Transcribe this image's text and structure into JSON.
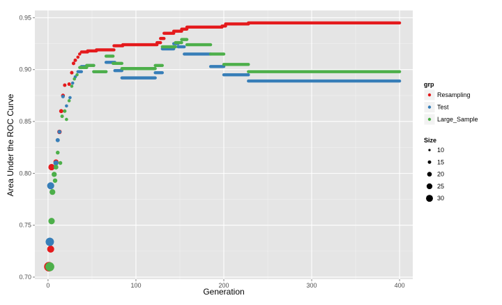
{
  "chart_data": {
    "type": "scatter",
    "xlabel": "Generation",
    "ylabel": "Area Under the ROC Curve",
    "xlim": [
      -15,
      415
    ],
    "ylim": [
      0.698,
      0.957
    ],
    "x_ticks": [
      0,
      100,
      200,
      300,
      400
    ],
    "y_ticks": [
      0.7,
      0.75,
      0.8,
      0.85,
      0.9,
      0.95
    ],
    "x_tick_labels": [
      "0",
      "100",
      "200",
      "300",
      "400"
    ],
    "y_tick_labels": [
      "0.70",
      "0.75",
      "0.80",
      "0.85",
      "0.90",
      "0.95"
    ],
    "grid": true,
    "legend_placement": "right",
    "color_legend": {
      "title": "grp",
      "items": [
        {
          "label": "Resampling",
          "color": "#e41a1c"
        },
        {
          "label": "Test",
          "color": "#377eb8"
        },
        {
          "label": "Large_Sample",
          "color": "#4daf4a"
        }
      ]
    },
    "size_legend": {
      "title": "Size",
      "items": [
        "10",
        "15",
        "20",
        "25",
        "30"
      ],
      "values": [
        10,
        15,
        20,
        25,
        30
      ]
    },
    "series": [
      {
        "name": "Resampling",
        "color": "#e41a1c",
        "points": [
          {
            "x": 1,
            "y": 0.71,
            "size": 30
          },
          {
            "x": 3,
            "y": 0.727,
            "size": 22
          },
          {
            "x": 4,
            "y": 0.806,
            "size": 20
          },
          {
            "x": 9,
            "y": 0.811,
            "size": 16
          },
          {
            "x": 13,
            "y": 0.84,
            "size": 14
          },
          {
            "x": 15,
            "y": 0.86,
            "size": 13
          },
          {
            "x": 17,
            "y": 0.875,
            "size": 12
          },
          {
            "x": 19,
            "y": 0.885,
            "size": 11
          },
          {
            "x": 24,
            "y": 0.886,
            "size": 11
          },
          {
            "x": 27,
            "y": 0.897,
            "size": 11
          },
          {
            "x": 29,
            "y": 0.906,
            "size": 11
          },
          {
            "x": 31,
            "y": 0.909,
            "size": 11
          },
          {
            "x": 34,
            "y": 0.912,
            "size": 10
          },
          {
            "x": 36,
            "y": 0.915,
            "size": 10
          }
        ],
        "steps": [
          {
            "x0": 38,
            "x1": 45,
            "y": 0.917
          },
          {
            "x0": 45,
            "x1": 55,
            "y": 0.918
          },
          {
            "x0": 55,
            "x1": 75,
            "y": 0.919
          },
          {
            "x0": 75,
            "x1": 85,
            "y": 0.923
          },
          {
            "x0": 85,
            "x1": 124,
            "y": 0.924
          },
          {
            "x0": 124,
            "x1": 128,
            "y": 0.926
          },
          {
            "x0": 128,
            "x1": 132,
            "y": 0.93
          },
          {
            "x0": 132,
            "x1": 143,
            "y": 0.935
          },
          {
            "x0": 143,
            "x1": 152,
            "y": 0.937
          },
          {
            "x0": 152,
            "x1": 158,
            "y": 0.939
          },
          {
            "x0": 158,
            "x1": 198,
            "y": 0.941
          },
          {
            "x0": 198,
            "x1": 202,
            "y": 0.942
          },
          {
            "x0": 202,
            "x1": 228,
            "y": 0.944
          },
          {
            "x0": 228,
            "x1": 400,
            "y": 0.945
          }
        ]
      },
      {
        "name": "Test",
        "color": "#377eb8",
        "points": [
          {
            "x": 2,
            "y": 0.734,
            "size": 26
          },
          {
            "x": 3,
            "y": 0.788,
            "size": 22
          },
          {
            "x": 9,
            "y": 0.81,
            "size": 16
          },
          {
            "x": 11,
            "y": 0.832,
            "size": 13
          },
          {
            "x": 13,
            "y": 0.84,
            "size": 12
          },
          {
            "x": 17,
            "y": 0.874,
            "size": 11
          },
          {
            "x": 21,
            "y": 0.865,
            "size": 10
          },
          {
            "x": 25,
            "y": 0.873,
            "size": 10
          },
          {
            "x": 28,
            "y": 0.887,
            "size": 10
          },
          {
            "x": 31,
            "y": 0.893,
            "size": 10
          }
        ],
        "steps": [
          {
            "x0": 34,
            "x1": 38,
            "y": 0.898
          },
          {
            "x0": 38,
            "x1": 44,
            "y": 0.903
          },
          {
            "x0": 44,
            "x1": 52,
            "y": 0.904
          },
          {
            "x0": 52,
            "x1": 66,
            "y": 0.898
          },
          {
            "x0": 66,
            "x1": 76,
            "y": 0.907
          },
          {
            "x0": 76,
            "x1": 84,
            "y": 0.899
          },
          {
            "x0": 84,
            "x1": 122,
            "y": 0.892
          },
          {
            "x0": 122,
            "x1": 130,
            "y": 0.897
          },
          {
            "x0": 130,
            "x1": 143,
            "y": 0.92
          },
          {
            "x0": 143,
            "x1": 148,
            "y": 0.925
          },
          {
            "x0": 148,
            "x1": 155,
            "y": 0.922
          },
          {
            "x0": 155,
            "x1": 185,
            "y": 0.915
          },
          {
            "x0": 185,
            "x1": 200,
            "y": 0.903
          },
          {
            "x0": 200,
            "x1": 228,
            "y": 0.895
          },
          {
            "x0": 228,
            "x1": 400,
            "y": 0.889
          }
        ]
      },
      {
        "name": "Large_Sample",
        "color": "#4daf4a",
        "points": [
          {
            "x": 2,
            "y": 0.71,
            "size": 28
          },
          {
            "x": 4,
            "y": 0.754,
            "size": 20
          },
          {
            "x": 5,
            "y": 0.782,
            "size": 18
          },
          {
            "x": 7,
            "y": 0.799,
            "size": 16
          },
          {
            "x": 9,
            "y": 0.806,
            "size": 15
          },
          {
            "x": 8,
            "y": 0.793,
            "size": 14
          },
          {
            "x": 11,
            "y": 0.82,
            "size": 12
          },
          {
            "x": 14,
            "y": 0.81,
            "size": 12
          },
          {
            "x": 16,
            "y": 0.855,
            "size": 11
          },
          {
            "x": 19,
            "y": 0.86,
            "size": 11
          },
          {
            "x": 21,
            "y": 0.852,
            "size": 10
          },
          {
            "x": 24,
            "y": 0.87,
            "size": 10
          },
          {
            "x": 27,
            "y": 0.884,
            "size": 10
          },
          {
            "x": 30,
            "y": 0.891,
            "size": 10
          },
          {
            "x": 33,
            "y": 0.895,
            "size": 10
          }
        ],
        "steps": [
          {
            "x0": 36,
            "x1": 44,
            "y": 0.902
          },
          {
            "x0": 44,
            "x1": 52,
            "y": 0.904
          },
          {
            "x0": 52,
            "x1": 66,
            "y": 0.898
          },
          {
            "x0": 66,
            "x1": 74,
            "y": 0.913
          },
          {
            "x0": 74,
            "x1": 84,
            "y": 0.906
          },
          {
            "x0": 84,
            "x1": 122,
            "y": 0.901
          },
          {
            "x0": 122,
            "x1": 130,
            "y": 0.904
          },
          {
            "x0": 130,
            "x1": 145,
            "y": 0.922
          },
          {
            "x0": 145,
            "x1": 152,
            "y": 0.926
          },
          {
            "x0": 152,
            "x1": 158,
            "y": 0.929
          },
          {
            "x0": 158,
            "x1": 185,
            "y": 0.924
          },
          {
            "x0": 185,
            "x1": 200,
            "y": 0.915
          },
          {
            "x0": 200,
            "x1": 228,
            "y": 0.905
          },
          {
            "x0": 228,
            "x1": 400,
            "y": 0.898
          }
        ]
      }
    ]
  }
}
